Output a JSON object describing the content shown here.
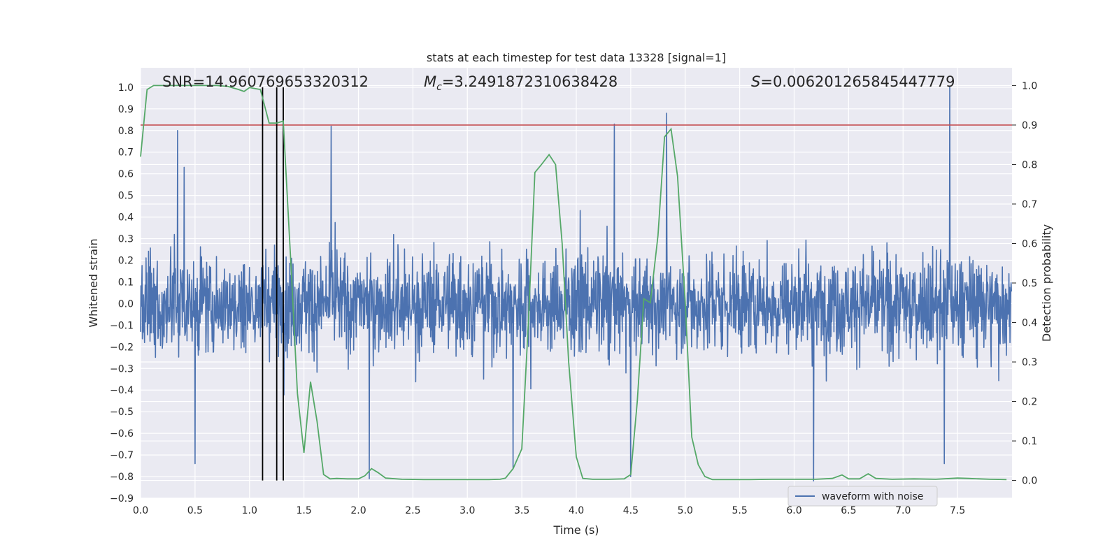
{
  "chart_data": {
    "type": "line",
    "title": "stats at each timestep for test data 13328 [signal=1]",
    "xlabel": "Time (s)",
    "ylabel": "Whitened strain",
    "y2label": "Detection probability",
    "xlim": [
      0.0,
      8.0
    ],
    "ylim": [
      -0.9,
      1.09
    ],
    "y2lim": [
      -0.045,
      1.045
    ],
    "xticks": [
      "0.0",
      "0.5",
      "1.0",
      "1.5",
      "2.0",
      "2.5",
      "3.0",
      "3.5",
      "4.0",
      "4.5",
      "5.0",
      "5.5",
      "6.0",
      "6.5",
      "7.0",
      "7.5"
    ],
    "yticks": [
      "−0.9",
      "−0.8",
      "−0.7",
      "−0.6",
      "−0.5",
      "−0.4",
      "−0.3",
      "−0.2",
      "−0.1",
      "0.0",
      "0.1",
      "0.2",
      "0.3",
      "0.4",
      "0.5",
      "0.6",
      "0.7",
      "0.8",
      "0.9",
      "1.0"
    ],
    "y2ticks": [
      "0.0",
      "0.1",
      "0.2",
      "0.3",
      "0.4",
      "0.5",
      "0.6",
      "0.7",
      "0.8",
      "0.9",
      "1.0"
    ],
    "annotations": {
      "snr": "SNR=14.960769653320312",
      "mc_symbol": "M",
      "mc_sub": "c",
      "mc_value": "=3.2491872310638428",
      "s_symbol": "S",
      "s_value": "=0.006201265845447779"
    },
    "legend": {
      "position": "lower-right",
      "entries": [
        "waveform with noise"
      ]
    },
    "grid": true,
    "threshold": {
      "axis": "right",
      "value": 0.9,
      "color": "#c44e52"
    },
    "vertical_lines": [
      1.12,
      1.25,
      1.31
    ],
    "series": [
      {
        "name": "waveform with noise",
        "axis": "left",
        "color": "#4c72b0",
        "peaks": [
          [
            0.34,
            0.8
          ],
          [
            0.4,
            0.63
          ],
          [
            1.75,
            0.82
          ],
          [
            4.35,
            0.83
          ],
          [
            4.83,
            0.88
          ],
          [
            7.43,
            1.0
          ],
          [
            2.1,
            -0.81
          ],
          [
            3.42,
            -0.76
          ],
          [
            6.18,
            -0.82
          ],
          [
            0.5,
            -0.74
          ],
          [
            4.5,
            -0.8
          ],
          [
            7.38,
            -0.74
          ]
        ]
      },
      {
        "axis": "right",
        "color": "#55a868",
        "x": [
          0.0,
          0.06,
          0.12,
          0.3,
          0.5,
          0.7,
          0.8,
          0.9,
          0.95,
          1.0,
          1.1,
          1.18,
          1.25,
          1.31,
          1.38,
          1.44,
          1.5,
          1.56,
          1.62,
          1.68,
          1.74,
          1.8,
          1.9,
          2.0,
          2.06,
          2.12,
          2.18,
          2.25,
          2.4,
          2.6,
          2.8,
          3.0,
          3.2,
          3.3,
          3.35,
          3.42,
          3.5,
          3.56,
          3.62,
          3.68,
          3.75,
          3.81,
          3.87,
          3.93,
          4.0,
          4.06,
          4.15,
          4.3,
          4.44,
          4.5,
          4.56,
          4.62,
          4.68,
          4.75,
          4.81,
          4.87,
          4.93,
          5.0,
          5.06,
          5.12,
          5.18,
          5.25,
          5.4,
          5.6,
          5.8,
          6.0,
          6.2,
          6.35,
          6.44,
          6.5,
          6.6,
          6.68,
          6.75,
          6.9,
          7.1,
          7.3,
          7.5,
          7.6,
          7.8,
          7.95
        ],
        "values": [
          0.82,
          0.99,
          1.0,
          1.0,
          1.0,
          1.0,
          0.998,
          0.99,
          0.985,
          0.995,
          0.99,
          0.905,
          0.905,
          0.91,
          0.55,
          0.22,
          0.07,
          0.25,
          0.15,
          0.015,
          0.004,
          0.005,
          0.004,
          0.004,
          0.012,
          0.03,
          0.02,
          0.006,
          0.003,
          0.002,
          0.002,
          0.002,
          0.002,
          0.003,
          0.006,
          0.03,
          0.08,
          0.4,
          0.78,
          0.8,
          0.825,
          0.8,
          0.6,
          0.3,
          0.06,
          0.005,
          0.003,
          0.003,
          0.004,
          0.015,
          0.2,
          0.46,
          0.45,
          0.62,
          0.87,
          0.89,
          0.77,
          0.45,
          0.11,
          0.04,
          0.01,
          0.002,
          0.002,
          0.002,
          0.003,
          0.003,
          0.003,
          0.005,
          0.014,
          0.004,
          0.004,
          0.017,
          0.005,
          0.003,
          0.004,
          0.003,
          0.006,
          0.005,
          0.003,
          0.002
        ]
      }
    ]
  }
}
